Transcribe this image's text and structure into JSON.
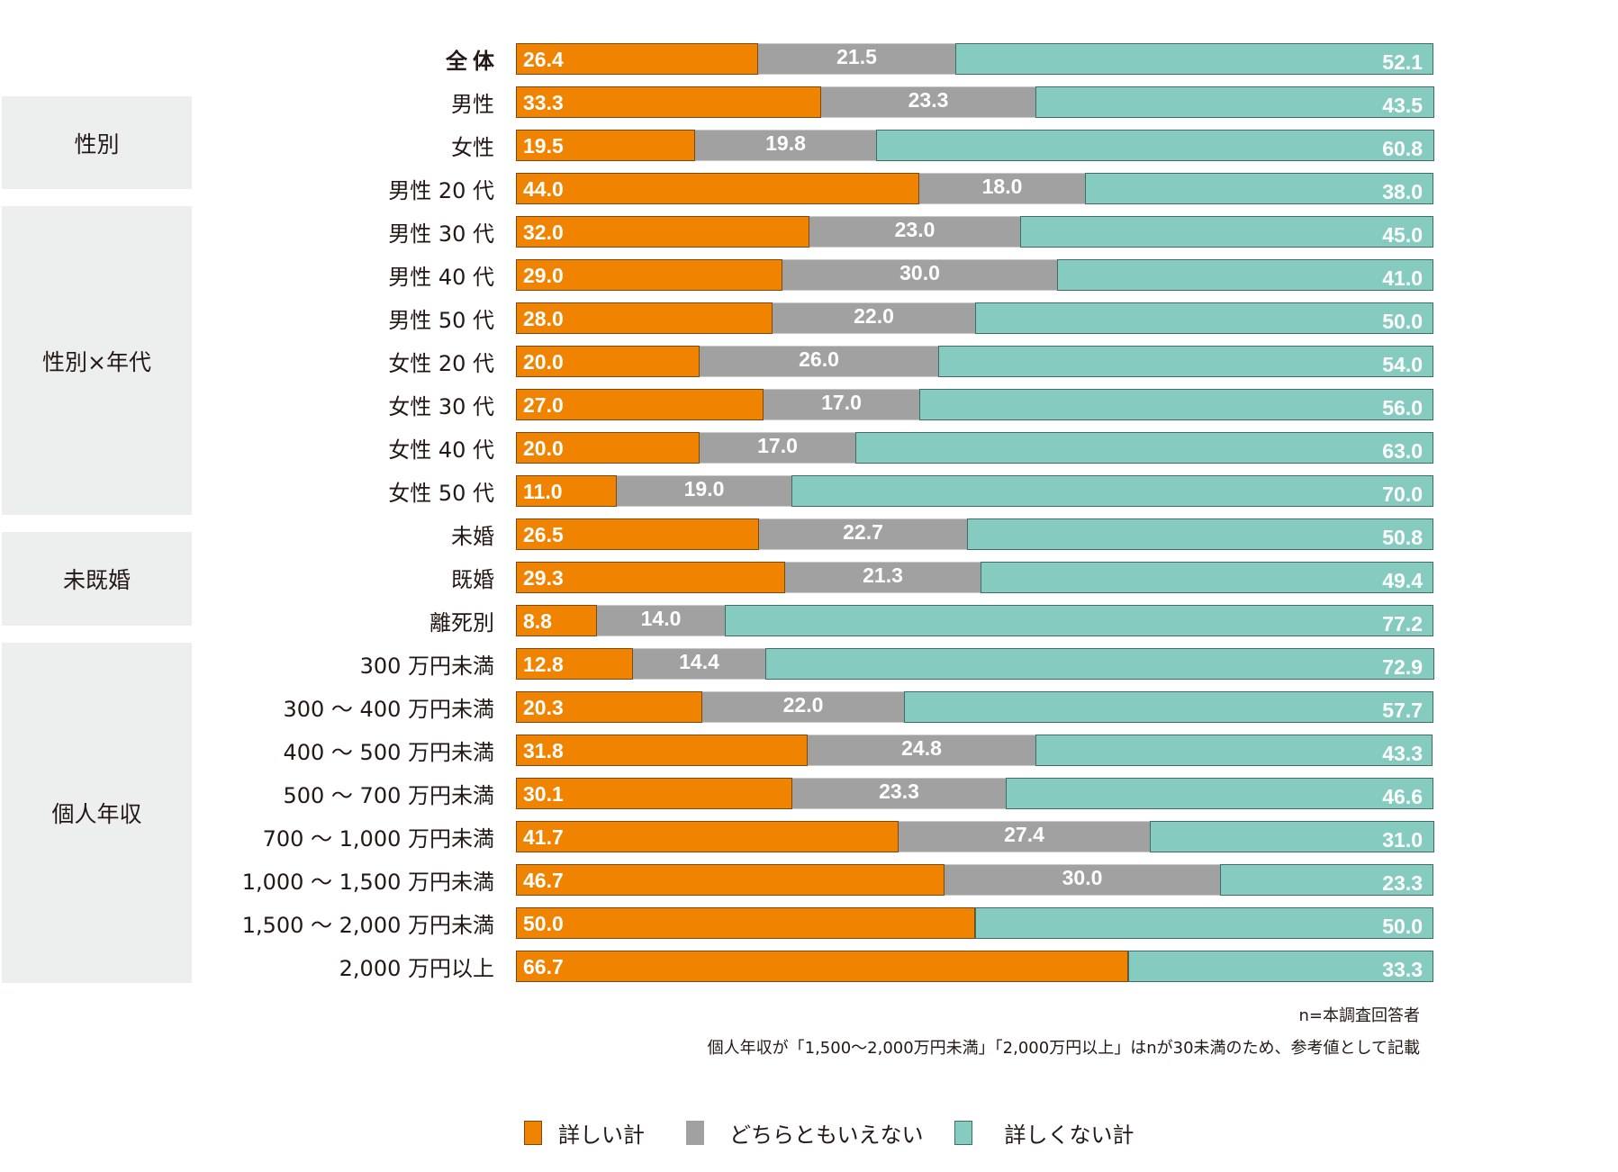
{
  "colors": {
    "detailed": "#F08300",
    "neutral": "#A0A1A0",
    "not_detailed": "#86CBBF",
    "group_bg": "#EDEEEE"
  },
  "groups": [
    {
      "label": "性別",
      "first_row": 1,
      "last_row": 2
    },
    {
      "label": "性別×年代",
      "first_row": 3,
      "last_row": 10
    },
    {
      "label": "未既婚",
      "first_row": 11,
      "last_row": 13
    },
    {
      "label": "個人年収",
      "first_row": 14,
      "last_row": 21
    }
  ],
  "chart_data": {
    "type": "bar",
    "orientation": "horizontal",
    "stacked": true,
    "unit": "%",
    "xlim": [
      0,
      100
    ],
    "categories": [
      "全体",
      "男性",
      "女性",
      "男性 20 代",
      "男性 30 代",
      "男性 40 代",
      "男性 50 代",
      "女性 20 代",
      "女性 30 代",
      "女性 40 代",
      "女性 50 代",
      "未婚",
      "既婚",
      "離死別",
      "300 万円未満",
      "300 〜 400 万円未満",
      "400 〜 500 万円未満",
      "500 〜 700 万円未満",
      "700 〜 1,000 万円未満",
      "1,000 〜 1,500 万円未満",
      "1,500 〜 2,000 万円未満",
      "2,000 万円以上"
    ],
    "series": [
      {
        "name": "詳しい計",
        "color": "#F08300",
        "values": [
          26.4,
          33.3,
          19.5,
          44.0,
          32.0,
          29.0,
          28.0,
          20.0,
          27.0,
          20.0,
          11.0,
          26.5,
          29.3,
          8.8,
          12.8,
          20.3,
          31.8,
          30.1,
          41.7,
          46.7,
          50.0,
          66.7
        ],
        "labels": [
          "26.4",
          "33.3",
          "19.5",
          "44.0",
          "32.0",
          "29.0",
          "28.0",
          "20.0",
          "27.0",
          "20.0",
          "11.0",
          "26.5",
          "29.3",
          "8.8",
          "12.8",
          "20.3",
          "31.8",
          "30.1",
          "41.7",
          "46.7",
          "50.0",
          "66.7"
        ]
      },
      {
        "name": "どちらともいえない",
        "color": "#A0A1A0",
        "values": [
          21.5,
          23.3,
          19.8,
          18.0,
          23.0,
          30.0,
          22.0,
          26.0,
          17.0,
          17.0,
          19.0,
          22.7,
          21.3,
          14.0,
          14.4,
          22.0,
          24.8,
          23.3,
          27.4,
          30.0,
          0,
          0
        ],
        "labels": [
          "21.5",
          "23.3",
          "19.8",
          "18.0",
          "23.0",
          "30.0",
          "22.0",
          "26.0",
          "17.0",
          "17.0",
          "19.0",
          "22.7",
          "21.3",
          "14.0",
          "14.4",
          "22.0",
          "24.8",
          "23.3",
          "27.4",
          "30.0",
          "",
          ""
        ]
      },
      {
        "name": "詳しくない計",
        "color": "#86CBBF",
        "values": [
          52.1,
          43.5,
          60.8,
          38.0,
          45.0,
          41.0,
          50.0,
          54.0,
          56.0,
          63.0,
          70.0,
          50.8,
          49.4,
          77.2,
          72.9,
          57.7,
          43.3,
          46.6,
          31.0,
          23.3,
          50.0,
          33.3
        ],
        "labels": [
          "52.1",
          "43.5",
          "60.8",
          "38.0",
          "45.0",
          "41.0",
          "50.0",
          "54.0",
          "56.0",
          "63.0",
          "70.0",
          "50.8",
          "49.4",
          "77.2",
          "72.9",
          "57.7",
          "43.3",
          "46.6",
          "31.0",
          "23.3",
          "50.0",
          "33.3"
        ]
      }
    ],
    "legend": [
      "詳しい計",
      "どちらともいえない",
      "詳しくない計"
    ],
    "legend_position": "bottom"
  },
  "notes": {
    "n": "n=本調査回答者",
    "caveat": "個人年収が「1,500〜2,000万円未満」「2,000万円以上」はnが30未満のため、参考値として記載"
  }
}
